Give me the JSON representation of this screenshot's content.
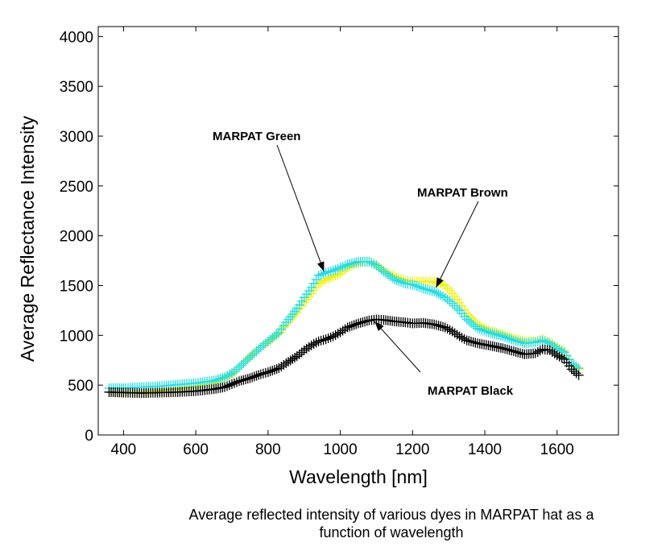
{
  "chart_data": {
    "type": "scatter",
    "title": "",
    "xlabel": "Wavelength [nm]",
    "ylabel": "Average Reflectance Intensity",
    "xlim": [
      330,
      1770
    ],
    "ylim": [
      0,
      4100
    ],
    "xticks": [
      400,
      600,
      800,
      1000,
      1200,
      1400,
      1600
    ],
    "yticks": [
      0,
      500,
      1000,
      1500,
      2000,
      2500,
      3000,
      3500,
      4000
    ],
    "grid": false,
    "marker": "+",
    "series": [
      {
        "name": "MARPAT Brown",
        "color": "#f2f20a",
        "points": [
          [
            360,
            430
          ],
          [
            400,
            430
          ],
          [
            450,
            430
          ],
          [
            500,
            445
          ],
          [
            550,
            465
          ],
          [
            600,
            490
          ],
          [
            650,
            520
          ],
          [
            700,
            610
          ],
          [
            720,
            680
          ],
          [
            750,
            790
          ],
          [
            780,
            880
          ],
          [
            800,
            930
          ],
          [
            830,
            1020
          ],
          [
            850,
            1110
          ],
          [
            880,
            1230
          ],
          [
            900,
            1330
          ],
          [
            920,
            1420
          ],
          [
            940,
            1520
          ],
          [
            960,
            1560
          ],
          [
            980,
            1590
          ],
          [
            1000,
            1620
          ],
          [
            1020,
            1680
          ],
          [
            1050,
            1730
          ],
          [
            1080,
            1740
          ],
          [
            1100,
            1710
          ],
          [
            1120,
            1650
          ],
          [
            1150,
            1590
          ],
          [
            1180,
            1550
          ],
          [
            1200,
            1540
          ],
          [
            1230,
            1540
          ],
          [
            1260,
            1540
          ],
          [
            1290,
            1500
          ],
          [
            1310,
            1420
          ],
          [
            1330,
            1330
          ],
          [
            1350,
            1220
          ],
          [
            1380,
            1110
          ],
          [
            1410,
            1050
          ],
          [
            1450,
            1010
          ],
          [
            1480,
            970
          ],
          [
            1510,
            940
          ],
          [
            1540,
            940
          ],
          [
            1560,
            960
          ],
          [
            1580,
            930
          ],
          [
            1600,
            880
          ],
          [
            1620,
            840
          ],
          [
            1640,
            720
          ],
          [
            1660,
            660
          ]
        ]
      },
      {
        "name": "MARPAT Green",
        "color": "#22dde8",
        "points": [
          [
            360,
            470
          ],
          [
            400,
            470
          ],
          [
            450,
            480
          ],
          [
            500,
            490
          ],
          [
            550,
            505
          ],
          [
            600,
            520
          ],
          [
            650,
            545
          ],
          [
            680,
            580
          ],
          [
            700,
            620
          ],
          [
            720,
            680
          ],
          [
            750,
            780
          ],
          [
            780,
            880
          ],
          [
            800,
            940
          ],
          [
            830,
            1030
          ],
          [
            850,
            1130
          ],
          [
            880,
            1270
          ],
          [
            900,
            1380
          ],
          [
            920,
            1480
          ],
          [
            940,
            1600
          ],
          [
            960,
            1630
          ],
          [
            980,
            1650
          ],
          [
            1000,
            1680
          ],
          [
            1020,
            1710
          ],
          [
            1050,
            1740
          ],
          [
            1080,
            1740
          ],
          [
            1100,
            1700
          ],
          [
            1120,
            1640
          ],
          [
            1150,
            1560
          ],
          [
            1180,
            1520
          ],
          [
            1200,
            1510
          ],
          [
            1230,
            1470
          ],
          [
            1260,
            1440
          ],
          [
            1290,
            1380
          ],
          [
            1310,
            1320
          ],
          [
            1330,
            1250
          ],
          [
            1350,
            1160
          ],
          [
            1380,
            1070
          ],
          [
            1410,
            1030
          ],
          [
            1450,
            990
          ],
          [
            1480,
            950
          ],
          [
            1510,
            920
          ],
          [
            1540,
            930
          ],
          [
            1560,
            950
          ],
          [
            1580,
            920
          ],
          [
            1600,
            870
          ],
          [
            1620,
            830
          ],
          [
            1640,
            720
          ],
          [
            1660,
            670
          ]
        ]
      },
      {
        "name": "MARPAT Black",
        "color": "#000000",
        "points": [
          [
            360,
            430
          ],
          [
            400,
            425
          ],
          [
            450,
            420
          ],
          [
            500,
            425
          ],
          [
            550,
            430
          ],
          [
            600,
            440
          ],
          [
            650,
            460
          ],
          [
            680,
            480
          ],
          [
            700,
            510
          ],
          [
            720,
            540
          ],
          [
            750,
            570
          ],
          [
            780,
            610
          ],
          [
            800,
            630
          ],
          [
            830,
            670
          ],
          [
            850,
            720
          ],
          [
            880,
            790
          ],
          [
            900,
            850
          ],
          [
            920,
            900
          ],
          [
            940,
            940
          ],
          [
            960,
            960
          ],
          [
            980,
            990
          ],
          [
            1000,
            1030
          ],
          [
            1020,
            1080
          ],
          [
            1050,
            1120
          ],
          [
            1080,
            1150
          ],
          [
            1100,
            1160
          ],
          [
            1120,
            1155
          ],
          [
            1150,
            1140
          ],
          [
            1180,
            1130
          ],
          [
            1200,
            1120
          ],
          [
            1230,
            1125
          ],
          [
            1260,
            1110
          ],
          [
            1290,
            1080
          ],
          [
            1310,
            1040
          ],
          [
            1330,
            990
          ],
          [
            1350,
            950
          ],
          [
            1380,
            920
          ],
          [
            1410,
            900
          ],
          [
            1450,
            870
          ],
          [
            1480,
            840
          ],
          [
            1510,
            810
          ],
          [
            1540,
            820
          ],
          [
            1560,
            860
          ],
          [
            1580,
            850
          ],
          [
            1600,
            800
          ],
          [
            1620,
            760
          ],
          [
            1640,
            660
          ],
          [
            1660,
            600
          ]
        ]
      }
    ],
    "annotations": [
      {
        "text": "MARPAT Green",
        "target": [
          955,
          1640
        ]
      },
      {
        "text": "MARPAT Brown",
        "target": [
          1265,
          1480
        ]
      },
      {
        "text": "MARPAT Black",
        "target": [
          1095,
          1140
        ]
      }
    ]
  },
  "caption": "Average reflected intensity of various dyes in MARPAT hat as a\nfunction of wavelength"
}
